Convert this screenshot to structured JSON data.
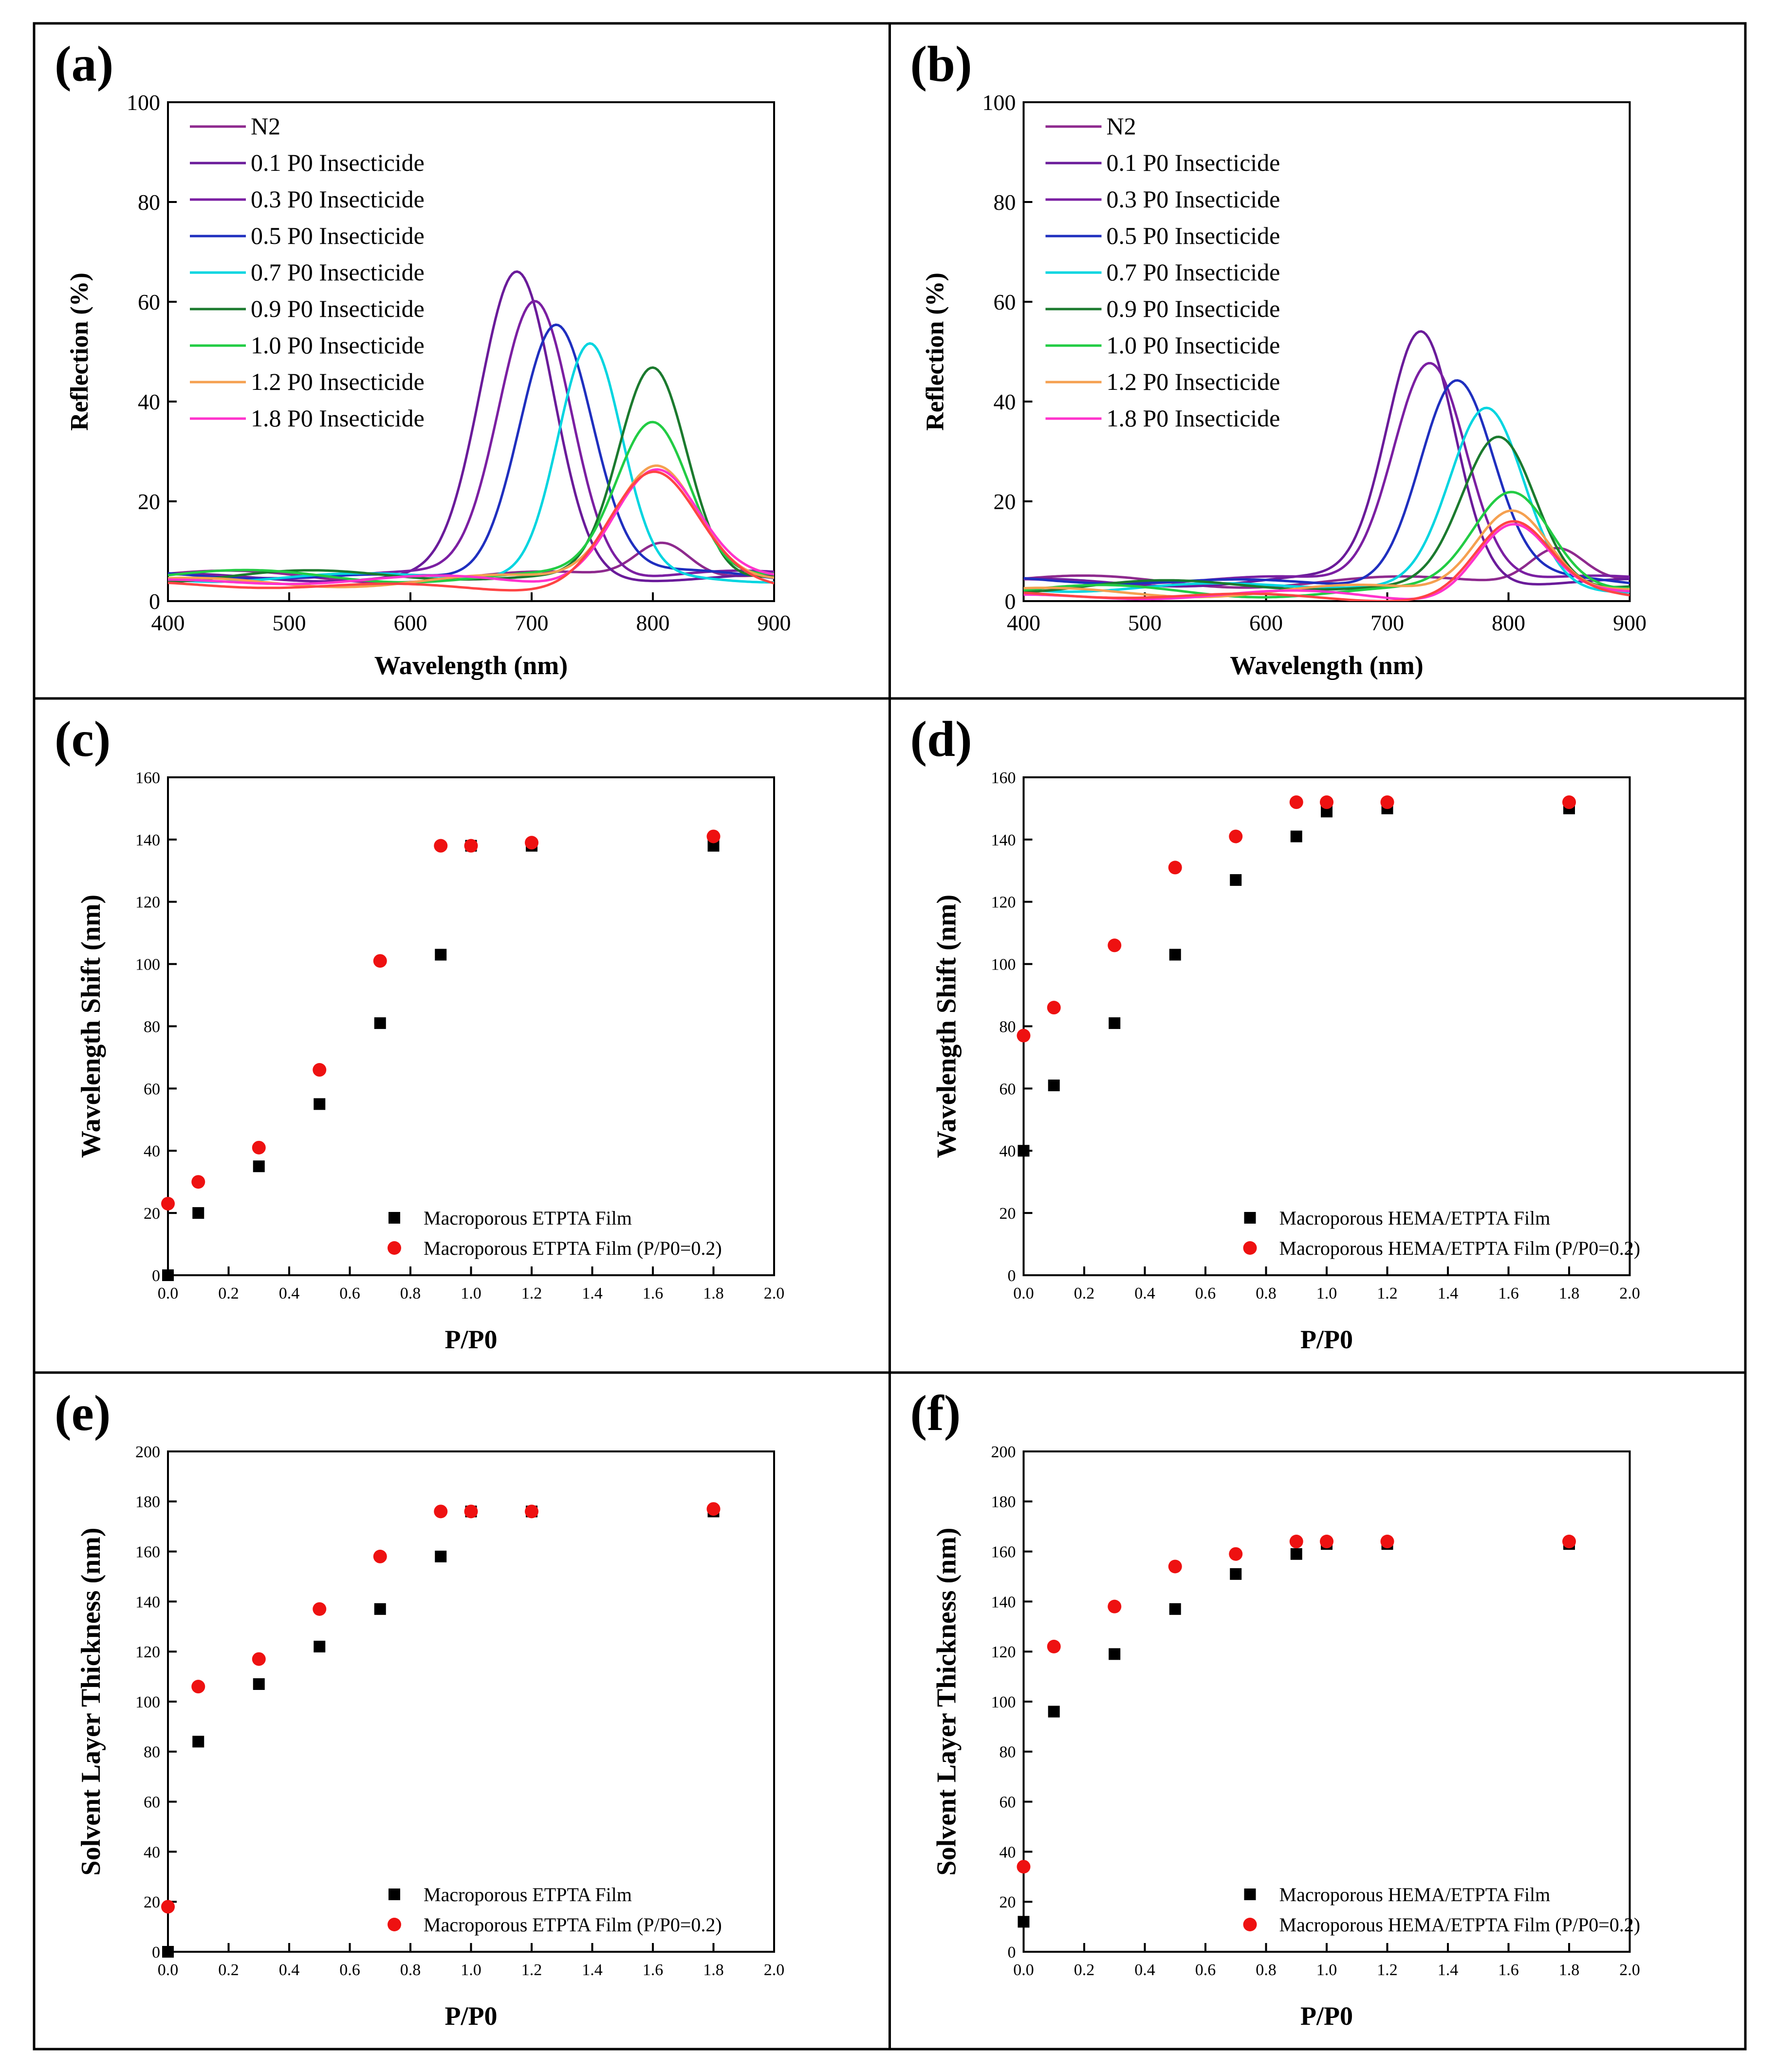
{
  "chart_data": [
    {
      "id": "a",
      "type": "line",
      "panel_label": "(a)",
      "xlabel": "Wavelength (nm)",
      "ylabel": "Reflection (%)",
      "xlim": [
        400,
        900
      ],
      "ylim": [
        0,
        100
      ],
      "xticks": [
        400,
        500,
        600,
        700,
        800,
        900
      ],
      "yticks": [
        0,
        20,
        40,
        60,
        80,
        100
      ],
      "legend_position": "top-left",
      "series": [
        {
          "name": "N2",
          "color": "#8e2a8e",
          "baseline": 5,
          "peak": {
            "x": 808,
            "height": 7,
            "width": 22
          }
        },
        {
          "name": "0.1 P0 Insecticide",
          "color": "#6a1b9a",
          "baseline": 5,
          "peak": {
            "x": 688,
            "height": 60,
            "width": 30
          }
        },
        {
          "name": "0.3 P0 Insecticide",
          "color": "#7b1fa2",
          "baseline": 5,
          "peak": {
            "x": 703,
            "height": 56,
            "width": 30
          }
        },
        {
          "name": "0.5 P0 Insecticide",
          "color": "#1f2fbf",
          "baseline": 5,
          "peak": {
            "x": 720,
            "height": 51,
            "width": 30
          }
        },
        {
          "name": "0.7 P0 Insecticide",
          "color": "#00d5e0",
          "baseline": 5,
          "peak": {
            "x": 748,
            "height": 46,
            "width": 26
          }
        },
        {
          "name": "0.9 P0 Insecticide",
          "color": "#1b7a2e",
          "baseline": 5,
          "peak": {
            "x": 800,
            "height": 42,
            "width": 28
          }
        },
        {
          "name": "1.0 P0 Insecticide",
          "color": "#22cc44",
          "baseline": 5,
          "peak": {
            "x": 800,
            "height": 31,
            "width": 30
          }
        },
        {
          "name": "1.2 P0 Insecticide",
          "color": "#f5a050",
          "baseline": 4,
          "peak": {
            "x": 803,
            "height": 24,
            "width": 34
          }
        },
        {
          "name": "1.8 P0 Insecticide",
          "color": "#ff33cc",
          "baseline": 4,
          "peak": {
            "x": 802,
            "height": 23,
            "width": 35
          }
        },
        {
          "name": "1.8 P0 Insecticide",
          "color": "#ff4444",
          "baseline": 3,
          "peak": {
            "x": 800,
            "height": 22,
            "width": 36
          }
        }
      ]
    },
    {
      "id": "b",
      "type": "line",
      "panel_label": "(b)",
      "xlabel": "Wavelength (nm)",
      "ylabel": "Reflection (%)",
      "xlim": [
        400,
        900
      ],
      "ylim": [
        0,
        100
      ],
      "xticks": [
        400,
        500,
        600,
        700,
        800,
        900
      ],
      "yticks": [
        0,
        20,
        40,
        60,
        80,
        100
      ],
      "legend_position": "top-left",
      "series": [
        {
          "name": "N2",
          "color": "#8e2a8e",
          "baseline": 4,
          "peak": {
            "x": 840,
            "height": 7,
            "width": 22
          }
        },
        {
          "name": "0.1 P0 Insecticide",
          "color": "#6a1b9a",
          "baseline": 4,
          "peak": {
            "x": 728,
            "height": 50,
            "width": 28
          }
        },
        {
          "name": "0.3 P0 Insecticide",
          "color": "#7b1fa2",
          "baseline": 4,
          "peak": {
            "x": 735,
            "height": 45,
            "width": 30
          }
        },
        {
          "name": "0.5 P0 Insecticide",
          "color": "#1f2fbf",
          "baseline": 4,
          "peak": {
            "x": 757,
            "height": 40,
            "width": 30
          }
        },
        {
          "name": "0.7 P0 Insecticide",
          "color": "#00d5e0",
          "baseline": 3,
          "peak": {
            "x": 782,
            "height": 35,
            "width": 30
          }
        },
        {
          "name": "0.9 P0 Insecticide",
          "color": "#1b7a2e",
          "baseline": 3,
          "peak": {
            "x": 792,
            "height": 30,
            "width": 30
          }
        },
        {
          "name": "1.0 P0 Insecticide",
          "color": "#22cc44",
          "baseline": 2,
          "peak": {
            "x": 803,
            "height": 20,
            "width": 32
          }
        },
        {
          "name": "1.2 P0 Insecticide",
          "color": "#f5a050",
          "baseline": 2,
          "peak": {
            "x": 803,
            "height": 17,
            "width": 30
          }
        },
        {
          "name": "1.8 P0 Insecticide",
          "color": "#ff33cc",
          "baseline": 1,
          "peak": {
            "x": 803,
            "height": 15,
            "width": 30
          }
        },
        {
          "name": "1.8 P0 Insecticide",
          "color": "#ff4444",
          "baseline": 1,
          "peak": {
            "x": 803,
            "height": 14,
            "width": 30
          }
        }
      ]
    },
    {
      "id": "c",
      "type": "scatter",
      "panel_label": "(c)",
      "xlabel": "P/P0",
      "ylabel": "Wavelength  Shift (nm)",
      "xlim": [
        0,
        2.0
      ],
      "ylim": [
        0,
        160
      ],
      "xticks": [
        0.0,
        0.2,
        0.4,
        0.6,
        0.8,
        1.0,
        1.2,
        1.4,
        1.6,
        1.8,
        2.0
      ],
      "yticks": [
        0,
        20,
        40,
        60,
        80,
        100,
        120,
        140,
        160
      ],
      "legend_position": "bottom-right",
      "series": [
        {
          "name": "Macroporous ETPTA Film",
          "marker": "square",
          "color": "#000000",
          "x": [
            0,
            0.1,
            0.3,
            0.5,
            0.7,
            0.9,
            1.0,
            1.2,
            1.8
          ],
          "y": [
            0,
            20,
            35,
            55,
            81,
            103,
            138,
            138,
            138
          ]
        },
        {
          "name": "Macroporous ETPTA Film (P/P0=0.2)",
          "marker": "circle",
          "color": "#ee1111",
          "x": [
            0,
            0.1,
            0.3,
            0.5,
            0.7,
            0.9,
            1.0,
            1.2,
            1.8
          ],
          "y": [
            23,
            30,
            41,
            66,
            101,
            138,
            138,
            139,
            141
          ]
        }
      ]
    },
    {
      "id": "d",
      "type": "scatter",
      "panel_label": "(d)",
      "xlabel": "P/P0",
      "ylabel": "Wavelength  Shift (nm)",
      "xlim": [
        0,
        2.0
      ],
      "ylim": [
        0,
        160
      ],
      "xticks": [
        0.0,
        0.2,
        0.4,
        0.6,
        0.8,
        1.0,
        1.2,
        1.4,
        1.6,
        1.8,
        2.0
      ],
      "yticks": [
        0,
        20,
        40,
        60,
        80,
        100,
        120,
        140,
        160
      ],
      "legend_position": "bottom-right",
      "series": [
        {
          "name": "Macroporous HEMA/ETPTA Film",
          "marker": "square",
          "color": "#000000",
          "x": [
            0,
            0.1,
            0.3,
            0.5,
            0.7,
            0.9,
            1.0,
            1.2,
            1.8
          ],
          "y": [
            40,
            61,
            81,
            103,
            127,
            141,
            149,
            150,
            150
          ]
        },
        {
          "name": "Macroporous HEMA/ETPTA Film (P/P0=0.2)",
          "marker": "circle",
          "color": "#ee1111",
          "x": [
            0,
            0.1,
            0.3,
            0.5,
            0.7,
            0.9,
            1.0,
            1.2,
            1.8
          ],
          "y": [
            77,
            86,
            106,
            131,
            141,
            152,
            152,
            152,
            152
          ]
        }
      ]
    },
    {
      "id": "e",
      "type": "scatter",
      "panel_label": "(e)",
      "xlabel": "P/P0",
      "ylabel": "Solvent Layer Thickness (nm)",
      "xlim": [
        0,
        2.0
      ],
      "ylim": [
        0,
        200
      ],
      "xticks": [
        0.0,
        0.2,
        0.4,
        0.6,
        0.8,
        1.0,
        1.2,
        1.4,
        1.6,
        1.8,
        2.0
      ],
      "yticks": [
        0,
        20,
        40,
        60,
        80,
        100,
        120,
        140,
        160,
        180,
        200
      ],
      "legend_position": "bottom-right",
      "series": [
        {
          "name": "Macroporous ETPTA Film",
          "marker": "square",
          "color": "#000000",
          "x": [
            0,
            0.1,
            0.3,
            0.5,
            0.7,
            0.9,
            1.0,
            1.2,
            1.8
          ],
          "y": [
            0,
            84,
            107,
            122,
            137,
            158,
            176,
            176,
            176
          ]
        },
        {
          "name": "Macroporous ETPTA Film  (P/P0=0.2)",
          "marker": "circle",
          "color": "#ee1111",
          "x": [
            0,
            0.1,
            0.3,
            0.5,
            0.7,
            0.9,
            1.0,
            1.2,
            1.8
          ],
          "y": [
            18,
            106,
            117,
            137,
            158,
            176,
            176,
            176,
            177
          ]
        }
      ]
    },
    {
      "id": "f",
      "type": "scatter",
      "panel_label": "(f)",
      "xlabel": "P/P0",
      "ylabel": "Solvent Layer Thickness (nm)",
      "xlim": [
        0,
        2.0
      ],
      "ylim": [
        0,
        200
      ],
      "xticks": [
        0.0,
        0.2,
        0.4,
        0.6,
        0.8,
        1.0,
        1.2,
        1.4,
        1.6,
        1.8,
        2.0
      ],
      "yticks": [
        0,
        20,
        40,
        60,
        80,
        100,
        120,
        140,
        160,
        180,
        200
      ],
      "legend_position": "bottom-right",
      "series": [
        {
          "name": "Macroporous HEMA/ETPTA Film",
          "marker": "square",
          "color": "#000000",
          "x": [
            0,
            0.1,
            0.3,
            0.5,
            0.7,
            0.9,
            1.0,
            1.2,
            1.8
          ],
          "y": [
            12,
            96,
            119,
            137,
            151,
            159,
            163,
            163,
            163
          ]
        },
        {
          "name": "Macroporous HEMA/ETPTA Film  (P/P0=0.2)",
          "marker": "circle",
          "color": "#ee1111",
          "x": [
            0,
            0.1,
            0.3,
            0.5,
            0.7,
            0.9,
            1.0,
            1.2,
            1.8
          ],
          "y": [
            34,
            122,
            138,
            154,
            159,
            164,
            164,
            164,
            164
          ]
        }
      ]
    }
  ]
}
